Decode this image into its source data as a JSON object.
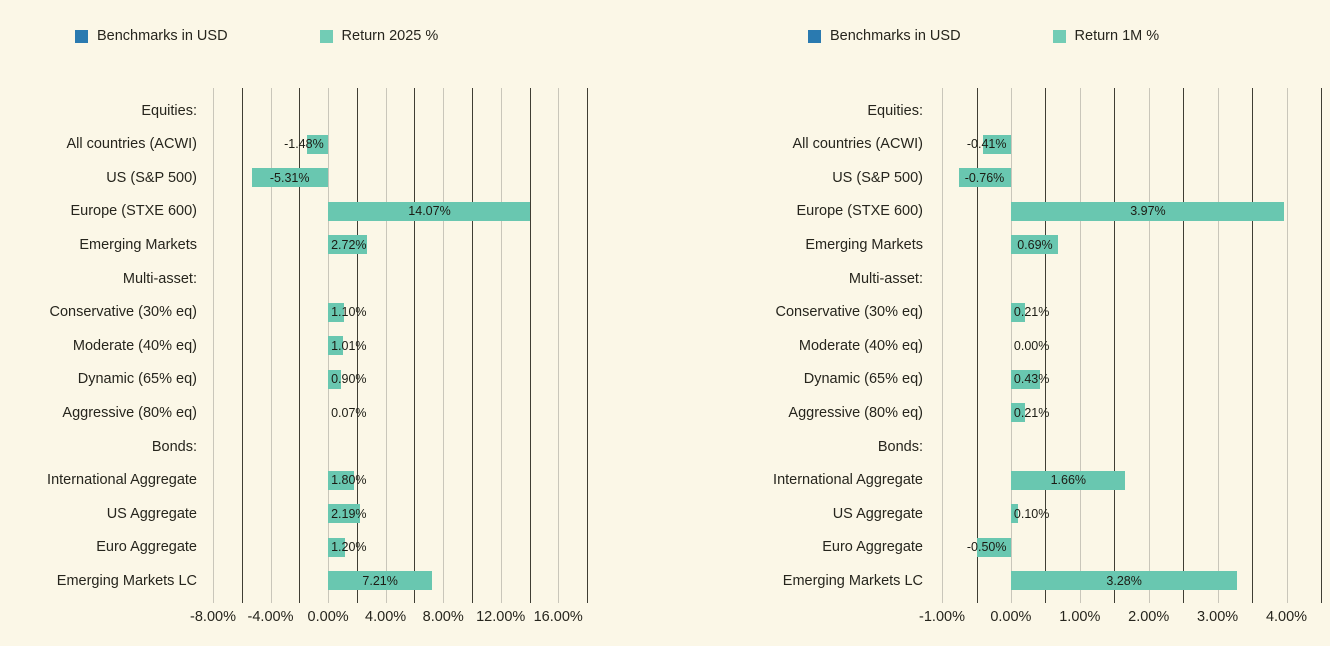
{
  "colors": {
    "background": "#FBF7E7",
    "text": "#26251D",
    "bar_teal": "#69C7B0",
    "legend_blue": "#2A7AB0",
    "legend_teal": "#72CCB5",
    "grid_major": "#C9C6BA",
    "grid_minor": "#3F3E34"
  },
  "chart_data": [
    {
      "type": "bar",
      "orientation": "horizontal",
      "legend": [
        {
          "label": "Benchmarks in USD",
          "color": "#2A7AB0"
        },
        {
          "label": "Return 2025 %",
          "color": "#72CCB5"
        }
      ],
      "categories": [
        "Equities:",
        "All countries (ACWI)",
        "US (S&P 500)",
        "Europe (STXE 600)",
        "Emerging Markets",
        "Multi-asset:",
        "Conservative (30% eq)",
        "Moderate (40% eq)",
        "Dynamic (65% eq)",
        "Aggressive (80% eq)",
        "Bonds:",
        "International Aggregate",
        "US Aggregate",
        "Euro Aggregate",
        "Emerging Markets LC"
      ],
      "values": [
        null,
        -1.48,
        -5.31,
        14.07,
        2.72,
        null,
        1.1,
        1.01,
        0.9,
        0.07,
        null,
        1.8,
        2.19,
        1.2,
        7.21
      ],
      "value_labels": [
        null,
        "-1.48%",
        "-5.31%",
        "14.07%",
        "2.72%",
        null,
        "1.10%",
        "1.01%",
        "0.90%",
        "0.07%",
        null,
        "1.80%",
        "2.19%",
        "1.20%",
        "7.21%"
      ],
      "xlim": [
        -8,
        18
      ],
      "grid_step": 2,
      "x_ticks": [
        -8,
        -4,
        0,
        4,
        8,
        12,
        16
      ],
      "x_tick_labels": [
        "-8.00%",
        "-4.00%",
        "0.00%",
        "4.00%",
        "8.00%",
        "12.00%",
        "16.00%"
      ],
      "bar_color": "#69C7B0"
    },
    {
      "type": "bar",
      "orientation": "horizontal",
      "legend": [
        {
          "label": "Benchmarks in USD",
          "color": "#2A7AB0"
        },
        {
          "label": "Return 1M %",
          "color": "#72CCB5"
        }
      ],
      "categories": [
        "Equities:",
        "All countries (ACWI)",
        "US (S&P 500)",
        "Europe (STXE 600)",
        "Emerging Markets",
        "Multi-asset:",
        "Conservative (30% eq)",
        "Moderate (40% eq)",
        "Dynamic (65% eq)",
        "Aggressive (80% eq)",
        "Bonds:",
        "International Aggregate",
        "US Aggregate",
        "Euro Aggregate",
        "Emerging Markets LC"
      ],
      "values": [
        null,
        -0.41,
        -0.76,
        3.97,
        0.69,
        null,
        0.21,
        0.0,
        0.43,
        0.21,
        null,
        1.66,
        0.1,
        -0.5,
        3.28
      ],
      "value_labels": [
        null,
        "-0.41%",
        "-0.76%",
        "3.97%",
        "0.69%",
        null,
        "0.21%",
        "0.00%",
        "0.43%",
        "0.21%",
        null,
        "1.66%",
        "0.10%",
        "-0.50%",
        "3.28%"
      ],
      "xlim": [
        -1,
        4.5
      ],
      "grid_step": 0.5,
      "x_ticks": [
        -1,
        0,
        1,
        2,
        3,
        4
      ],
      "x_tick_labels": [
        "-1.00%",
        "0.00%",
        "1.00%",
        "2.00%",
        "3.00%",
        "4.00%"
      ],
      "bar_color": "#69C7B0"
    }
  ]
}
